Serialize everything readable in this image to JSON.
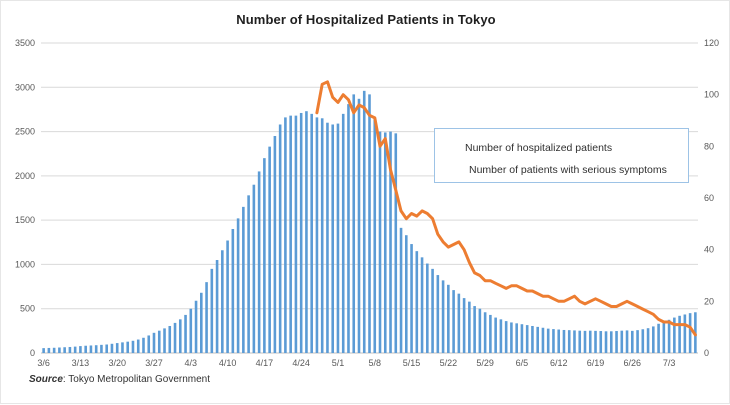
{
  "chart": {
    "title": "Number of Hospitalized Patients in Tokyo",
    "source_label": "Source",
    "source_text": ": Tokyo Metropolitan Government",
    "legend": [
      {
        "label": "Number of hospitalized patients",
        "swatch": "bar-swatch",
        "color": "#5b9bd5"
      },
      {
        "label": "Number of patients with serious symptoms",
        "swatch": "line-swatch",
        "color": "#ed7d31"
      }
    ]
  },
  "chart_data": {
    "type": "bar",
    "title": "Number of Hospitalized Patients in Tokyo",
    "grid": true,
    "legend_position": "center-right",
    "left_axis": {
      "min": 0,
      "max": 3500,
      "step": 500,
      "ticks": [
        "0",
        "500",
        "1000",
        "1500",
        "2000",
        "2500",
        "3000",
        "3500"
      ]
    },
    "right_axis": {
      "min": 0,
      "max": 120,
      "step": 20,
      "ticks": [
        "0",
        "20",
        "40",
        "60",
        "80",
        "100",
        "120"
      ]
    },
    "x_tick_labels": [
      "3/6",
      "3/13",
      "3/20",
      "3/27",
      "4/3",
      "4/10",
      "4/17",
      "4/24",
      "5/1",
      "5/8",
      "5/15",
      "5/22",
      "5/29",
      "6/5",
      "6/12",
      "6/19",
      "6/26",
      "7/3"
    ],
    "x_tick_interval_days": 7,
    "dates": [
      "3/6",
      "3/7",
      "3/8",
      "3/9",
      "3/10",
      "3/11",
      "3/12",
      "3/13",
      "3/14",
      "3/15",
      "3/16",
      "3/17",
      "3/18",
      "3/19",
      "3/20",
      "3/21",
      "3/22",
      "3/23",
      "3/24",
      "3/25",
      "3/26",
      "3/27",
      "3/28",
      "3/29",
      "3/30",
      "3/31",
      "4/1",
      "4/2",
      "4/3",
      "4/4",
      "4/5",
      "4/6",
      "4/7",
      "4/8",
      "4/9",
      "4/10",
      "4/11",
      "4/12",
      "4/13",
      "4/14",
      "4/15",
      "4/16",
      "4/17",
      "4/18",
      "4/19",
      "4/20",
      "4/21",
      "4/22",
      "4/23",
      "4/24",
      "4/25",
      "4/26",
      "4/27",
      "4/28",
      "4/29",
      "4/30",
      "5/1",
      "5/2",
      "5/3",
      "5/4",
      "5/5",
      "5/6",
      "5/7",
      "5/8",
      "5/9",
      "5/10",
      "5/11",
      "5/12",
      "5/13",
      "5/14",
      "5/15",
      "5/16",
      "5/17",
      "5/18",
      "5/19",
      "5/20",
      "5/21",
      "5/22",
      "5/23",
      "5/24",
      "5/25",
      "5/26",
      "5/27",
      "5/28",
      "5/29",
      "5/30",
      "5/31",
      "6/1",
      "6/2",
      "6/3",
      "6/4",
      "6/5",
      "6/6",
      "6/7",
      "6/8",
      "6/9",
      "6/10",
      "6/11",
      "6/12",
      "6/13",
      "6/14",
      "6/15",
      "6/16",
      "6/17",
      "6/18",
      "6/19",
      "6/20",
      "6/21",
      "6/22",
      "6/23",
      "6/24",
      "6/25",
      "6/26",
      "6/27",
      "6/28",
      "6/29",
      "6/30",
      "7/1",
      "7/2",
      "7/3",
      "7/4",
      "7/5",
      "7/6",
      "7/7",
      "7/8"
    ],
    "series": [
      {
        "name": "Number of hospitalized patients",
        "type": "bar",
        "axis": "left",
        "color": "#5b9bd5",
        "values": [
          55,
          57,
          59,
          62,
          65,
          68,
          72,
          78,
          82,
          85,
          88,
          92,
          96,
          104,
          112,
          120,
          128,
          138,
          152,
          172,
          198,
          228,
          252,
          278,
          305,
          340,
          380,
          430,
          500,
          590,
          680,
          800,
          950,
          1050,
          1160,
          1270,
          1400,
          1520,
          1650,
          1780,
          1900,
          2050,
          2200,
          2330,
          2450,
          2580,
          2660,
          2680,
          2680,
          2710,
          2730,
          2700,
          2660,
          2650,
          2600,
          2580,
          2590,
          2700,
          2810,
          2920,
          2870,
          2960,
          2920,
          2650,
          2500,
          2490,
          2500,
          2480,
          1413,
          1330,
          1230,
          1150,
          1080,
          1010,
          950,
          880,
          820,
          770,
          710,
          670,
          620,
          580,
          530,
          500,
          460,
          430,
          400,
          380,
          360,
          345,
          335,
          325,
          315,
          305,
          295,
          285,
          275,
          270,
          265,
          260,
          258,
          255,
          252,
          250,
          252,
          250,
          248,
          245,
          245,
          248,
          252,
          255,
          250,
          258,
          268,
          280,
          300,
          330,
          355,
          375,
          400,
          420,
          435,
          450,
          460
        ]
      },
      {
        "name": "Number of patients with serious symptoms",
        "type": "line",
        "axis": "right",
        "color": "#ed7d31",
        "start_date": "4/27",
        "start_index": 52,
        "values": [
          93,
          104,
          105,
          99,
          97,
          100,
          98,
          93,
          96,
          95,
          92,
          91,
          80,
          83,
          71,
          63,
          55,
          52,
          54,
          53,
          55,
          54,
          52,
          46,
          43,
          41,
          42,
          43,
          40,
          35,
          31,
          30,
          28,
          28,
          27,
          26,
          25,
          26,
          26,
          25,
          24,
          24,
          23,
          22,
          22,
          21,
          20,
          20,
          21,
          22,
          20,
          19,
          20,
          21,
          20,
          19,
          18,
          18,
          19,
          20,
          19,
          18,
          17,
          16,
          15,
          13,
          12,
          12,
          11,
          11,
          11,
          10,
          7
        ]
      }
    ]
  }
}
